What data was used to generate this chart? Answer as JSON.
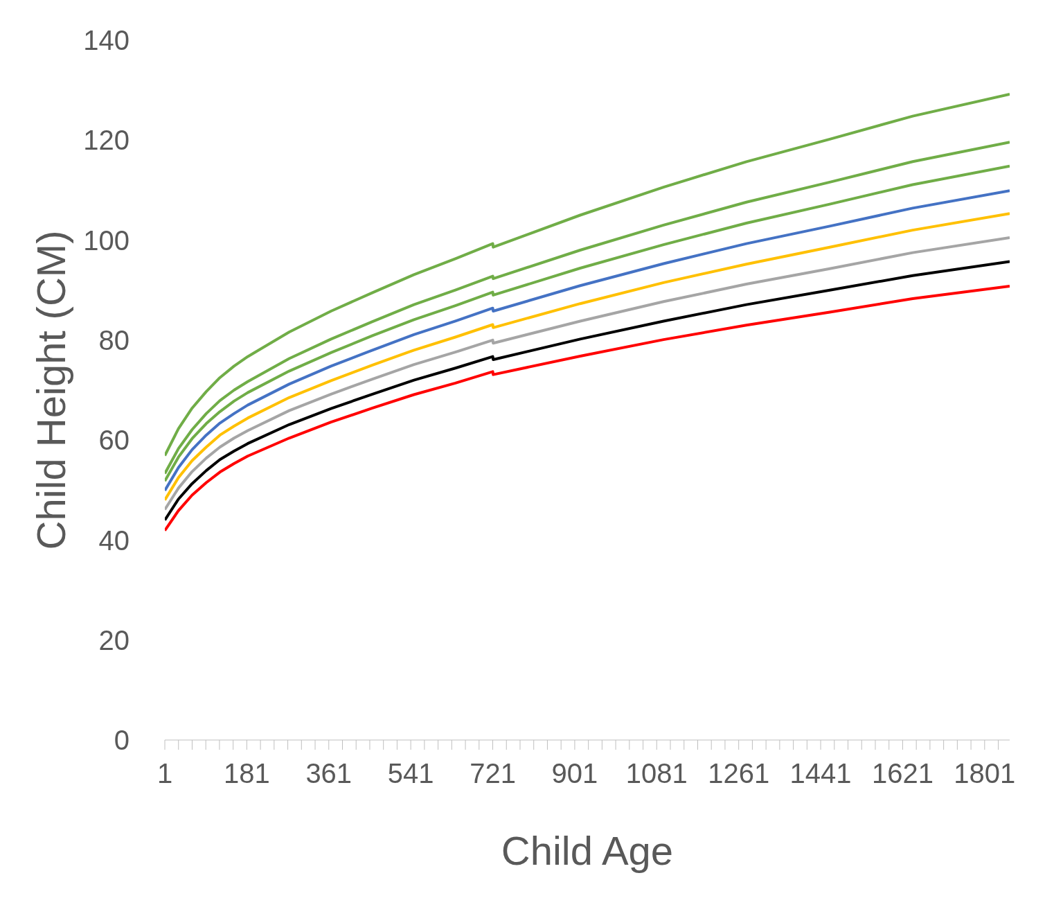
{
  "chart_data": {
    "type": "line",
    "xlabel": "Child Age",
    "ylabel": "Child Height (CM)",
    "x": [
      1,
      31,
      61,
      92,
      122,
      153,
      183,
      274,
      366,
      457,
      548,
      639,
      721,
      722,
      913,
      1096,
      1278,
      1461,
      1643,
      1856
    ],
    "series": [
      {
        "color": "#70ad47",
        "values": [
          56.9,
          62.3,
          66.4,
          69.7,
          72.5,
          74.8,
          76.7,
          81.6,
          85.8,
          89.5,
          93.1,
          96.3,
          99.3,
          98.6,
          105.0,
          110.6,
          115.7,
          120.2,
          124.8,
          129.2
        ]
      },
      {
        "color": "#70ad47",
        "values": [
          53.3,
          58.3,
          62.1,
          65.3,
          67.9,
          70.0,
          71.7,
          76.3,
          80.2,
          83.7,
          87.1,
          90.0,
          92.8,
          92.3,
          98.0,
          103.0,
          107.6,
          111.6,
          115.7,
          119.6
        ]
      },
      {
        "color": "#70ad47",
        "values": [
          51.8,
          56.6,
          60.3,
          63.3,
          65.7,
          67.8,
          69.5,
          73.8,
          77.5,
          80.9,
          84.1,
          86.9,
          89.6,
          89.0,
          94.4,
          99.1,
          103.4,
          107.2,
          111.1,
          114.8
        ]
      },
      {
        "color": "#4472c4",
        "values": [
          49.9,
          54.5,
          58.1,
          61.0,
          63.4,
          65.3,
          67.0,
          71.2,
          74.8,
          78.0,
          81.1,
          83.8,
          86.4,
          85.8,
          90.9,
          95.3,
          99.3,
          102.8,
          106.4,
          109.9
        ]
      },
      {
        "color": "#ffc000",
        "values": [
          48.0,
          52.5,
          55.9,
          58.6,
          61.0,
          62.8,
          64.4,
          68.5,
          71.9,
          75.0,
          78.0,
          80.6,
          83.1,
          82.5,
          87.3,
          91.5,
          95.2,
          98.6,
          102.0,
          105.3
        ]
      },
      {
        "color": "#a5a5a5",
        "values": [
          46.1,
          50.4,
          53.7,
          56.4,
          58.6,
          60.4,
          61.9,
          65.9,
          69.2,
          72.2,
          75.1,
          77.6,
          80.0,
          79.4,
          83.8,
          87.7,
          91.2,
          94.3,
          97.5,
          100.5
        ]
      },
      {
        "color": "#000000",
        "values": [
          44.0,
          48.2,
          51.3,
          53.9,
          56.1,
          57.8,
          59.3,
          63.1,
          66.3,
          69.2,
          72.0,
          74.4,
          76.7,
          76.1,
          80.2,
          83.8,
          87.1,
          90.0,
          92.9,
          95.7
        ]
      },
      {
        "color": "#ff0000",
        "values": [
          41.9,
          45.9,
          49.0,
          51.5,
          53.6,
          55.3,
          56.8,
          60.4,
          63.6,
          66.4,
          69.1,
          71.4,
          73.7,
          73.1,
          76.8,
          80.1,
          83.0,
          85.6,
          88.3,
          90.8
        ]
      }
    ],
    "xlim": [
      1,
      1856
    ],
    "xticks": [
      1,
      {
        "value": 31,
        "label": null
      },
      {
        "value": 61,
        "label": null
      },
      {
        "value": 91,
        "label": null
      },
      {
        "value": 121,
        "label": null
      },
      {
        "value": 151,
        "label": null
      },
      181,
      {
        "value": 211,
        "label": null
      },
      {
        "value": 241,
        "label": null
      },
      {
        "value": 271,
        "label": null
      },
      {
        "value": 301,
        "label": null
      },
      {
        "value": 331,
        "label": null
      },
      361,
      {
        "value": 391,
        "label": null
      },
      {
        "value": 421,
        "label": null
      },
      {
        "value": 451,
        "label": null
      },
      {
        "value": 481,
        "label": null
      },
      {
        "value": 511,
        "label": null
      },
      541,
      {
        "value": 571,
        "label": null
      },
      {
        "value": 601,
        "label": null
      },
      {
        "value": 631,
        "label": null
      },
      {
        "value": 661,
        "label": null
      },
      {
        "value": 691,
        "label": null
      },
      721,
      {
        "value": 751,
        "label": null
      },
      {
        "value": 781,
        "label": null
      },
      {
        "value": 811,
        "label": null
      },
      {
        "value": 841,
        "label": null
      },
      {
        "value": 871,
        "label": null
      },
      901,
      {
        "value": 931,
        "label": null
      },
      {
        "value": 961,
        "label": null
      },
      {
        "value": 991,
        "label": null
      },
      {
        "value": 1021,
        "label": null
      },
      {
        "value": 1051,
        "label": null
      },
      1081,
      {
        "value": 1111,
        "label": null
      },
      {
        "value": 1141,
        "label": null
      },
      {
        "value": 1171,
        "label": null
      },
      {
        "value": 1201,
        "label": null
      },
      {
        "value": 1231,
        "label": null
      },
      1261,
      {
        "value": 1291,
        "label": null
      },
      {
        "value": 1321,
        "label": null
      },
      {
        "value": 1351,
        "label": null
      },
      {
        "value": 1381,
        "label": null
      },
      {
        "value": 1411,
        "label": null
      },
      1441,
      {
        "value": 1471,
        "label": null
      },
      {
        "value": 1501,
        "label": null
      },
      {
        "value": 1531,
        "label": null
      },
      {
        "value": 1561,
        "label": null
      },
      {
        "value": 1591,
        "label": null
      },
      1621,
      {
        "value": 1651,
        "label": null
      },
      {
        "value": 1681,
        "label": null
      },
      {
        "value": 1711,
        "label": null
      },
      {
        "value": 1741,
        "label": null
      },
      {
        "value": 1771,
        "label": null
      },
      1801,
      {
        "value": 1831,
        "label": null
      }
    ],
    "ylim": [
      0,
      140
    ],
    "yticks": [
      0,
      20,
      40,
      60,
      80,
      100,
      120,
      140
    ],
    "grid": false,
    "marker": "none",
    "line_style": "solid"
  }
}
